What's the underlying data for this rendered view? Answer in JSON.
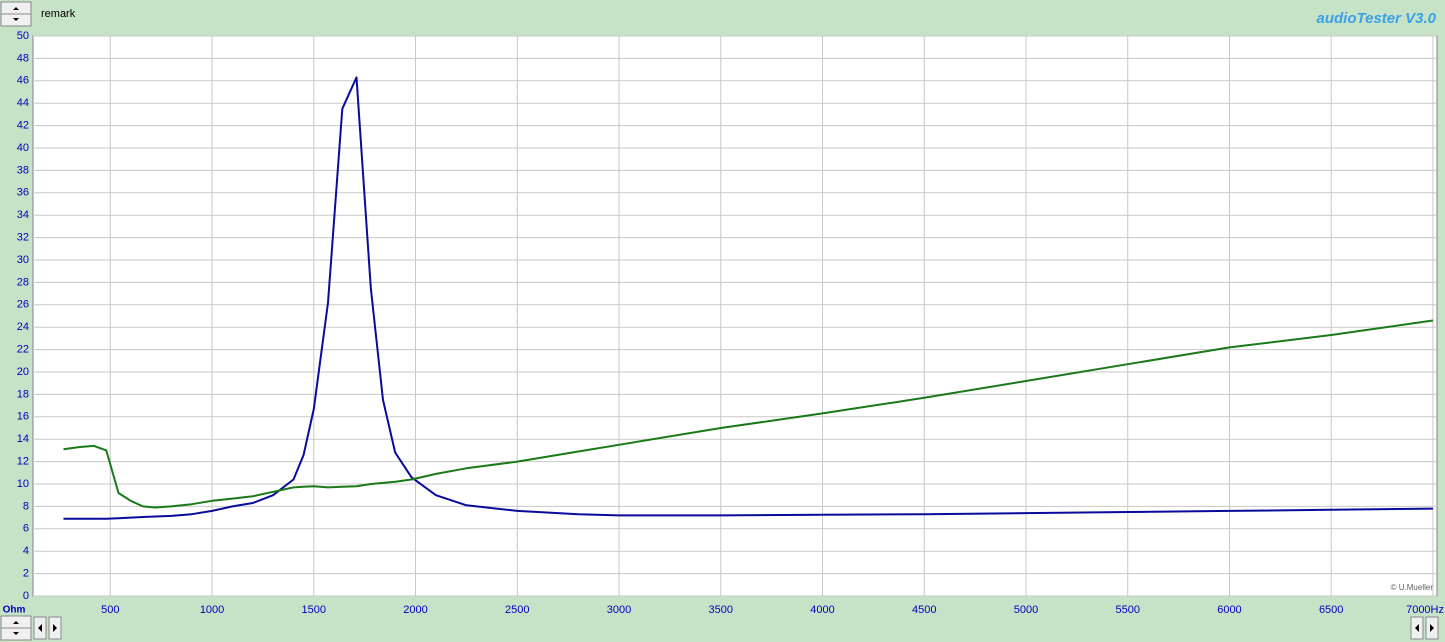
{
  "chart_data": {
    "type": "line",
    "title": "audioTester V3.0",
    "ylabel": "Ohm",
    "annotations": [
      "remark",
      "© U.Mueller"
    ],
    "x": [
      270,
      350,
      420,
      480,
      540,
      600,
      660,
      720,
      800,
      900,
      1000,
      1100,
      1200,
      1300,
      1400,
      1450,
      1500,
      1570,
      1640,
      1710,
      1780,
      1840,
      1900,
      1980,
      2100,
      2250,
      2500,
      2800,
      3000,
      3500,
      4000,
      4500,
      5000,
      5500,
      6000,
      6500,
      7000
    ],
    "series": [
      {
        "color": "#0a0a9c",
        "values": [
          6.9,
          6.9,
          6.9,
          6.9,
          6.95,
          7.0,
          7.05,
          7.1,
          7.15,
          7.3,
          7.6,
          8.0,
          8.3,
          9.0,
          10.4,
          12.6,
          16.7,
          26.2,
          43.5,
          46.3,
          27.5,
          17.5,
          12.8,
          10.6,
          9.0,
          8.1,
          7.6,
          7.3,
          7.2,
          7.2,
          7.25,
          7.3,
          7.4,
          7.5,
          7.6,
          7.7,
          7.8
        ]
      },
      {
        "color": "#1a7a1a",
        "values": [
          13.1,
          13.3,
          13.4,
          13.0,
          9.2,
          8.5,
          8.0,
          7.9,
          8.0,
          8.2,
          8.5,
          8.7,
          8.9,
          9.3,
          9.7,
          9.75,
          9.8,
          9.7,
          9.75,
          9.8,
          10.0,
          10.1,
          10.2,
          10.4,
          10.9,
          11.4,
          12.0,
          12.9,
          13.5,
          15.0,
          16.3,
          17.7,
          19.2,
          20.7,
          22.2,
          23.3,
          24.6
        ]
      }
    ],
    "xlim": [
      120,
      7020
    ],
    "xticks": [
      500,
      1000,
      1500,
      2000,
      2500,
      3000,
      3500,
      4000,
      4500,
      5000,
      5500,
      6000,
      6500,
      {
        "value": 7000,
        "label": "7000Hz"
      }
    ],
    "ylim": [
      0,
      50
    ],
    "yticks": [
      0,
      2,
      4,
      6,
      8,
      10,
      12,
      14,
      16,
      18,
      20,
      22,
      24,
      26,
      28,
      30,
      32,
      34,
      36,
      38,
      40,
      42,
      44,
      46,
      48,
      50
    ],
    "grid": true
  }
}
